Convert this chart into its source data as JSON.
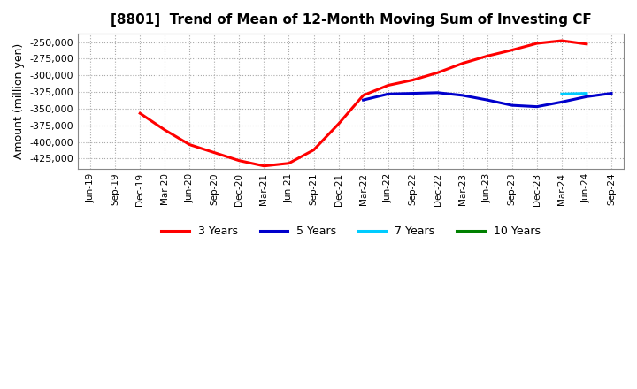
{
  "title": "[8801]  Trend of Mean of 12-Month Moving Sum of Investing CF",
  "ylabel": "Amount (million yen)",
  "background_color": "#ffffff",
  "grid_color": "#aaaaaa",
  "ylim": [
    -440000,
    -237500
  ],
  "yticks": [
    -425000,
    -400000,
    -375000,
    -350000,
    -325000,
    -300000,
    -275000,
    -250000
  ],
  "x_labels": [
    "Jun-19",
    "Sep-19",
    "Dec-19",
    "Mar-20",
    "Jun-20",
    "Sep-20",
    "Dec-20",
    "Mar-21",
    "Jun-21",
    "Sep-21",
    "Dec-21",
    "Mar-22",
    "Jun-22",
    "Sep-22",
    "Dec-22",
    "Mar-23",
    "Jun-23",
    "Sep-23",
    "Dec-23",
    "Mar-24",
    "Jun-24",
    "Sep-24"
  ],
  "series": [
    {
      "label": "3 Years",
      "color": "#ff0000",
      "linewidth": 2.2,
      "values": [
        null,
        null,
        -357000,
        -382000,
        -404000,
        -416000,
        -428000,
        -436000,
        -432000,
        -412000,
        -373000,
        -330000,
        -315000,
        -307000,
        -296000,
        -282000,
        -271000,
        -262000,
        -252000,
        -248000,
        -253000,
        null
      ]
    },
    {
      "label": "5 Years",
      "color": "#0000cc",
      "linewidth": 2.2,
      "values": [
        null,
        null,
        null,
        null,
        null,
        null,
        null,
        null,
        null,
        null,
        null,
        -337000,
        -328000,
        -327000,
        -326000,
        -330000,
        -337000,
        -345000,
        -347000,
        -340000,
        -332000,
        -327000
      ]
    },
    {
      "label": "7 Years",
      "color": "#00ccff",
      "linewidth": 2.2,
      "values": [
        null,
        null,
        null,
        null,
        null,
        null,
        null,
        null,
        null,
        null,
        null,
        null,
        null,
        null,
        null,
        null,
        null,
        null,
        null,
        -328000,
        -327000,
        null
      ]
    },
    {
      "label": "10 Years",
      "color": "#008000",
      "linewidth": 2.2,
      "values": [
        null,
        null,
        null,
        null,
        null,
        null,
        null,
        null,
        null,
        null,
        null,
        null,
        null,
        null,
        null,
        null,
        null,
        null,
        null,
        null,
        null,
        null
      ]
    }
  ],
  "legend_labels": [
    "3 Years",
    "5 Years",
    "7 Years",
    "10 Years"
  ],
  "legend_colors": [
    "#ff0000",
    "#0000cc",
    "#00ccff",
    "#008000"
  ]
}
